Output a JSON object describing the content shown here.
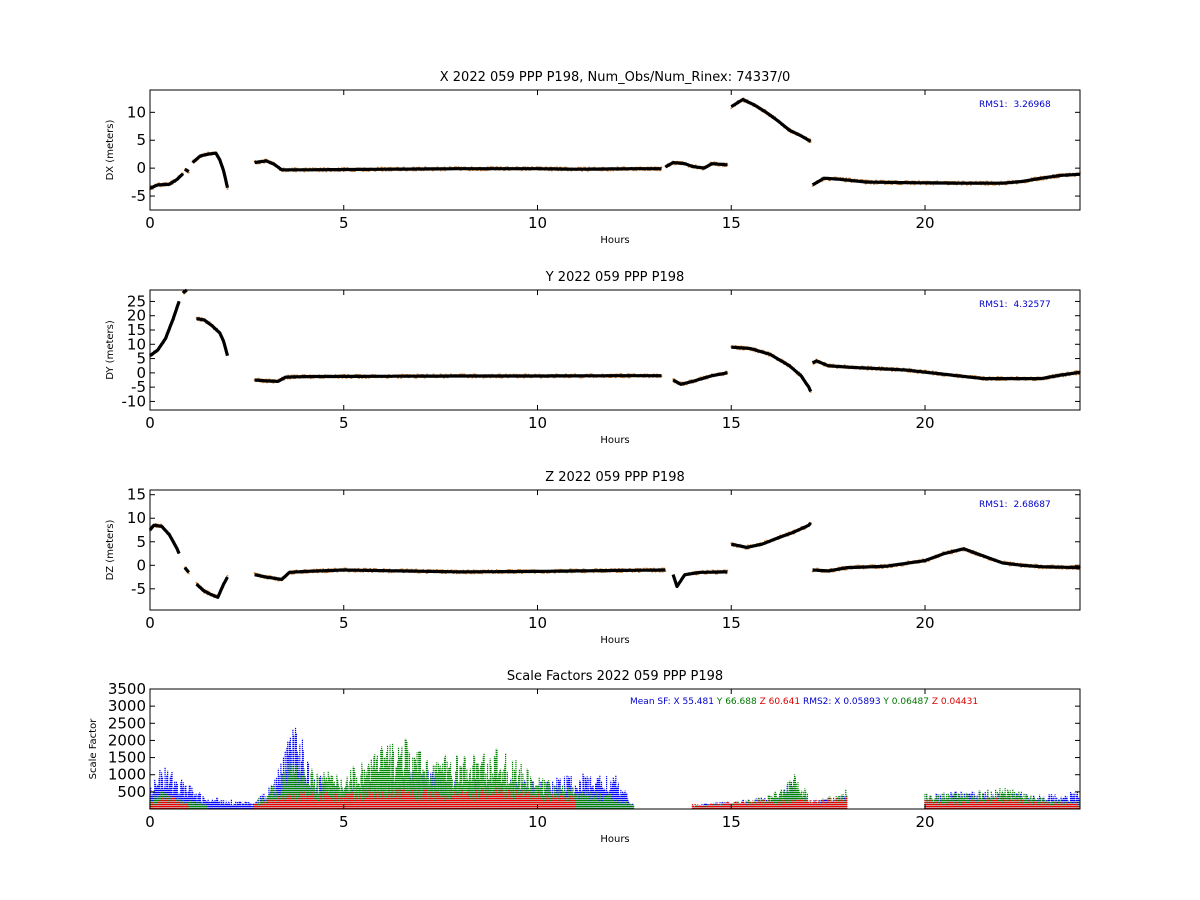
{
  "chart_data": [
    {
      "type": "scatter",
      "title": "X 2022 059 PPP  P198, Num_Obs/Num_Rinex: 74337/0",
      "xlabel": "Hours",
      "ylabel": "DX (meters)",
      "xlim": [
        0,
        24
      ],
      "ylim": [
        -7.5,
        14
      ],
      "xticks": [
        0,
        5,
        10,
        15,
        20
      ],
      "yticks": [
        -5,
        0,
        5,
        10
      ],
      "annotation": {
        "label": "RMS1:",
        "value": "3.26968",
        "color": "#0000cc"
      },
      "series_colors": {
        "raw": "#cd853f",
        "solution": "#000000"
      },
      "segments": [
        [
          [
            0.0,
            -3.6
          ],
          [
            0.2,
            -3.0
          ],
          [
            0.5,
            -2.9
          ],
          [
            0.7,
            -2.0
          ],
          [
            0.85,
            -1.0
          ]
        ],
        [
          [
            0.9,
            -0.2
          ],
          [
            1.0,
            -0.6
          ]
        ],
        [
          [
            1.1,
            1.0
          ],
          [
            1.3,
            2.2
          ],
          [
            1.5,
            2.5
          ],
          [
            1.7,
            2.7
          ],
          [
            1.8,
            1.5
          ],
          [
            1.9,
            -0.5
          ],
          [
            2.0,
            -3.5
          ]
        ],
        [
          [
            2.7,
            1.0
          ],
          [
            3.0,
            1.3
          ],
          [
            3.2,
            0.7
          ],
          [
            3.4,
            -0.3
          ],
          [
            4.0,
            -0.3
          ],
          [
            6.0,
            -0.2
          ],
          [
            8.0,
            -0.1
          ],
          [
            10.0,
            -0.1
          ],
          [
            11.0,
            -0.2
          ],
          [
            12.5,
            -0.1
          ],
          [
            13.2,
            -0.1
          ]
        ],
        [
          [
            13.3,
            0.2
          ],
          [
            13.5,
            1.0
          ],
          [
            13.8,
            0.8
          ],
          [
            14.0,
            0.3
          ],
          [
            14.3,
            0.0
          ],
          [
            14.5,
            0.8
          ],
          [
            14.9,
            0.6
          ]
        ],
        [
          [
            15.0,
            11.0
          ],
          [
            15.3,
            12.3
          ],
          [
            15.6,
            11.3
          ],
          [
            15.9,
            10.0
          ],
          [
            16.2,
            8.5
          ],
          [
            16.5,
            6.8
          ],
          [
            16.8,
            5.8
          ],
          [
            17.05,
            4.8
          ]
        ],
        [
          [
            17.1,
            -3.0
          ],
          [
            17.4,
            -1.8
          ],
          [
            17.8,
            -2.0
          ],
          [
            18.5,
            -2.5
          ],
          [
            19.5,
            -2.6
          ],
          [
            21.0,
            -2.7
          ],
          [
            22.0,
            -2.7
          ],
          [
            22.5,
            -2.4
          ],
          [
            23.0,
            -1.8
          ],
          [
            23.5,
            -1.3
          ],
          [
            24.0,
            -1.1
          ]
        ]
      ]
    },
    {
      "type": "scatter",
      "title": "Y 2022 059 PPP  P198",
      "xlabel": "Hours",
      "ylabel": "DY (meters)",
      "xlim": [
        0,
        24
      ],
      "ylim": [
        -13,
        29
      ],
      "xticks": [
        0,
        5,
        10,
        15,
        20
      ],
      "yticks": [
        -10,
        -5,
        0,
        5,
        10,
        15,
        20,
        25
      ],
      "annotation": {
        "label": "RMS1:",
        "value": "4.32577",
        "color": "#0000cc"
      },
      "series_colors": {
        "raw": "#cd853f",
        "solution": "#000000"
      },
      "segments": [
        [
          [
            0.0,
            6.0
          ],
          [
            0.2,
            8.0
          ],
          [
            0.4,
            12.0
          ],
          [
            0.6,
            19.0
          ],
          [
            0.75,
            25.0
          ]
        ],
        [
          [
            0.85,
            28.0
          ],
          [
            0.95,
            29.0
          ]
        ],
        [
          [
            1.2,
            19.0
          ],
          [
            1.4,
            18.5
          ],
          [
            1.6,
            16.5
          ],
          [
            1.8,
            14.0
          ],
          [
            1.9,
            11.0
          ],
          [
            2.0,
            6.0
          ]
        ],
        [
          [
            2.7,
            -2.5
          ],
          [
            3.0,
            -2.8
          ],
          [
            3.3,
            -3.0
          ],
          [
            3.5,
            -1.5
          ],
          [
            4.0,
            -1.3
          ],
          [
            6.0,
            -1.2
          ],
          [
            8.0,
            -1.1
          ],
          [
            10.0,
            -1.1
          ],
          [
            12.0,
            -1.0
          ],
          [
            13.2,
            -1.0
          ]
        ],
        [
          [
            13.5,
            -2.5
          ],
          [
            13.7,
            -4.0
          ],
          [
            14.0,
            -3.0
          ],
          [
            14.5,
            -1.0
          ],
          [
            14.9,
            0.0
          ]
        ],
        [
          [
            15.0,
            9.0
          ],
          [
            15.5,
            8.5
          ],
          [
            16.0,
            6.5
          ],
          [
            16.5,
            2.5
          ],
          [
            16.8,
            -1.0
          ],
          [
            17.0,
            -5.0
          ],
          [
            17.05,
            -6.5
          ]
        ],
        [
          [
            17.1,
            3.5
          ],
          [
            17.2,
            4.2
          ],
          [
            17.5,
            2.5
          ],
          [
            18.0,
            2.0
          ],
          [
            19.5,
            1.0
          ],
          [
            20.5,
            -0.5
          ],
          [
            21.5,
            -2.0
          ],
          [
            22.0,
            -2.0
          ],
          [
            23.0,
            -2.0
          ],
          [
            23.5,
            -0.8
          ],
          [
            24.0,
            0.2
          ]
        ]
      ]
    },
    {
      "type": "scatter",
      "title": "Z 2022 059 PPP  P198",
      "xlabel": "Hours",
      "ylabel": "DZ (meters)",
      "xlim": [
        0,
        24
      ],
      "ylim": [
        -9.5,
        16
      ],
      "xticks": [
        0,
        5,
        10,
        15,
        20
      ],
      "yticks": [
        -5,
        0,
        5,
        10,
        15
      ],
      "annotation": {
        "label": "RMS1:",
        "value": "2.68687",
        "color": "#0000cc"
      },
      "series_colors": {
        "raw": "#cd853f",
        "solution": "#000000"
      },
      "segments": [
        [
          [
            0.0,
            7.5
          ],
          [
            0.1,
            8.5
          ],
          [
            0.3,
            8.3
          ],
          [
            0.5,
            6.5
          ],
          [
            0.7,
            3.5
          ],
          [
            0.75,
            2.5
          ]
        ],
        [
          [
            0.9,
            -0.5
          ],
          [
            1.0,
            -1.5
          ]
        ],
        [
          [
            1.2,
            -4.0
          ],
          [
            1.4,
            -5.5
          ],
          [
            1.6,
            -6.3
          ],
          [
            1.75,
            -6.8
          ],
          [
            1.9,
            -4.0
          ],
          [
            2.0,
            -2.5
          ]
        ],
        [
          [
            2.7,
            -2.0
          ],
          [
            3.0,
            -2.5
          ],
          [
            3.4,
            -3.0
          ],
          [
            3.6,
            -1.5
          ],
          [
            4.0,
            -1.3
          ],
          [
            5.0,
            -1.0
          ],
          [
            6.5,
            -1.2
          ],
          [
            8.0,
            -1.4
          ],
          [
            10.0,
            -1.3
          ],
          [
            12.0,
            -1.1
          ],
          [
            13.3,
            -1.0
          ]
        ],
        [
          [
            13.5,
            -2.0
          ],
          [
            13.6,
            -4.5
          ],
          [
            13.8,
            -2.0
          ],
          [
            14.2,
            -1.5
          ],
          [
            14.9,
            -1.4
          ]
        ],
        [
          [
            15.0,
            4.5
          ],
          [
            15.4,
            3.8
          ],
          [
            15.8,
            4.5
          ],
          [
            16.2,
            5.8
          ],
          [
            16.6,
            7.0
          ],
          [
            17.0,
            8.5
          ],
          [
            17.05,
            9.0
          ]
        ],
        [
          [
            17.1,
            -1.0
          ],
          [
            17.5,
            -1.2
          ],
          [
            18.0,
            -0.5
          ],
          [
            19.0,
            -0.2
          ],
          [
            20.0,
            1.0
          ],
          [
            20.5,
            2.5
          ],
          [
            21.0,
            3.5
          ],
          [
            21.5,
            2.0
          ],
          [
            22.0,
            0.5
          ],
          [
            22.5,
            0.0
          ],
          [
            23.0,
            -0.3
          ],
          [
            24.0,
            -0.5
          ]
        ]
      ]
    },
    {
      "type": "scatter",
      "title": "Scale Factors 2022 059 PPP  P198",
      "xlabel": "Hours",
      "ylabel": "Scale Factor",
      "xlim": [
        0,
        24
      ],
      "ylim": [
        0,
        3500
      ],
      "xticks": [
        0,
        5,
        10,
        15,
        20
      ],
      "yticks": [
        500,
        1000,
        1500,
        2000,
        2500,
        3000,
        3500
      ],
      "annotation": [
        {
          "text": "Mean SF: X  55.481",
          "color": "#0000cc"
        },
        {
          "text": "Y  66.688",
          "color": "#007700"
        },
        {
          "text": "Z  60.641",
          "color": "#dd0000"
        },
        {
          "text": "RMS2: X  0.05893",
          "color": "#0000cc"
        },
        {
          "text": "Y  0.06487",
          "color": "#007700"
        },
        {
          "text": "Z  0.04431",
          "color": "#dd0000"
        }
      ],
      "series": [
        {
          "name": "X",
          "color": "#0000ff",
          "points": [
            [
              0.0,
              400
            ],
            [
              0.1,
              1000
            ],
            [
              0.3,
              1100
            ],
            [
              0.5,
              950
            ],
            [
              0.75,
              800
            ],
            [
              1.5,
              250
            ],
            [
              1.7,
              300
            ],
            [
              2.7,
              150
            ],
            [
              3.2,
              700
            ],
            [
              3.6,
              1800
            ],
            [
              3.8,
              2200
            ],
            [
              4.2,
              900
            ],
            [
              5.0,
              600
            ],
            [
              6.0,
              650
            ],
            [
              7.0,
              1000
            ],
            [
              8.0,
              700
            ],
            [
              9.0,
              800
            ],
            [
              10.0,
              650
            ],
            [
              10.5,
              800
            ],
            [
              11.0,
              850
            ],
            [
              11.5,
              900
            ],
            [
              12.0,
              850
            ],
            [
              12.5,
              100
            ],
            [
              14.0,
              100
            ],
            [
              15.0,
              200
            ],
            [
              16.0,
              300
            ],
            [
              16.6,
              700
            ],
            [
              17.0,
              200
            ],
            [
              18.0,
              350
            ],
            [
              20.0,
              350
            ],
            [
              21.0,
              450
            ],
            [
              22.0,
              400
            ],
            [
              23.0,
              350
            ],
            [
              24.0,
              450
            ]
          ]
        },
        {
          "name": "Y",
          "color": "#008800",
          "points": [
            [
              0.0,
              250
            ],
            [
              0.3,
              500
            ],
            [
              0.6,
              300
            ],
            [
              1.5,
              150
            ],
            [
              2.7,
              200
            ],
            [
              3.3,
              700
            ],
            [
              3.6,
              1300
            ],
            [
              4.0,
              1000
            ],
            [
              5.0,
              900
            ],
            [
              6.0,
              1600
            ],
            [
              6.5,
              1800
            ],
            [
              7.0,
              1400
            ],
            [
              8.0,
              1300
            ],
            [
              9.0,
              1500
            ],
            [
              10.0,
              800
            ],
            [
              11.0,
              500
            ],
            [
              12.0,
              350
            ],
            [
              12.5,
              100
            ],
            [
              14.0,
              80
            ],
            [
              15.0,
              150
            ],
            [
              16.0,
              350
            ],
            [
              16.7,
              900
            ],
            [
              17.1,
              150
            ],
            [
              18.0,
              500
            ],
            [
              20.0,
              400
            ],
            [
              21.0,
              400
            ],
            [
              22.0,
              550
            ],
            [
              23.0,
              300
            ],
            [
              24.0,
              200
            ]
          ]
        },
        {
          "name": "Z",
          "color": "#ee0000",
          "points": [
            [
              0.0,
              200
            ],
            [
              0.5,
              350
            ],
            [
              1.0,
              120
            ],
            [
              2.7,
              150
            ],
            [
              3.5,
              350
            ],
            [
              4.0,
              450
            ],
            [
              5.0,
              400
            ],
            [
              6.0,
              550
            ],
            [
              7.0,
              500
            ],
            [
              8.0,
              450
            ],
            [
              9.0,
              550
            ],
            [
              10.0,
              400
            ],
            [
              11.0,
              350
            ],
            [
              12.5,
              100
            ],
            [
              14.0,
              120
            ],
            [
              15.0,
              180
            ],
            [
              16.0,
              250
            ],
            [
              17.1,
              250
            ],
            [
              18.0,
              300
            ],
            [
              20.0,
              250
            ],
            [
              21.0,
              200
            ],
            [
              22.0,
              300
            ],
            [
              23.0,
              200
            ],
            [
              24.0,
              150
            ]
          ]
        }
      ]
    }
  ]
}
